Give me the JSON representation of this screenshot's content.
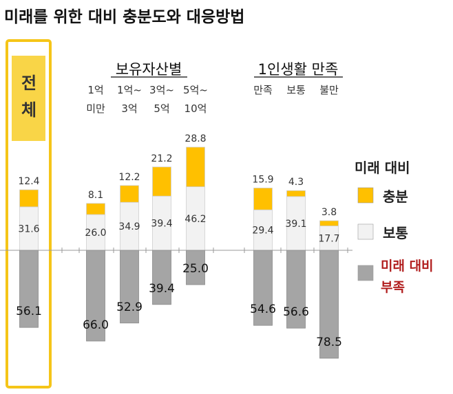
{
  "title": "미래를 위한 대비 충분도와 대응방법",
  "groups": {
    "assets": "보유자산별",
    "life": "1인생활 만족"
  },
  "total_label": [
    "전",
    "체"
  ],
  "legend": {
    "title": "미래 대비",
    "items": [
      {
        "label": "충분",
        "color": "#FFC000"
      },
      {
        "label": "보통",
        "color": "#F2F2F2"
      },
      {
        "label": [
          "미래 대비",
          "부족"
        ],
        "color": "#A5A5A5",
        "text_color": "#B11D1D"
      }
    ]
  },
  "chart_data": {
    "type": "bar",
    "stacked": "diverging",
    "categories": [
      [
        "전체"
      ],
      [
        "1억",
        "미만"
      ],
      [
        "1억~",
        "3억"
      ],
      [
        "3억~",
        "5억"
      ],
      [
        "5억~",
        "10억"
      ],
      [
        "만족"
      ],
      [
        "보통"
      ],
      [
        "불만"
      ]
    ],
    "series": [
      {
        "name": "충분",
        "color": "#FFC000",
        "values": [
          12.4,
          8.1,
          12.2,
          21.2,
          28.8,
          15.9,
          4.3,
          3.8
        ]
      },
      {
        "name": "보통",
        "color": "#F2F2F2",
        "values": [
          31.6,
          26.0,
          34.9,
          39.4,
          46.2,
          29.4,
          39.1,
          17.7
        ]
      },
      {
        "name": "미래 대비 부족",
        "color": "#A5A5A5",
        "values": [
          56.1,
          66.0,
          52.9,
          39.4,
          25.0,
          54.6,
          56.6,
          78.5
        ]
      }
    ],
    "value_labels": {
      "충분": [
        "12.4",
        "8.1",
        "12.2",
        "21.2",
        "28.8",
        "15.9",
        "4.3",
        "3.8"
      ],
      "보통": [
        "31.6",
        "26.0",
        "34.9",
        "39.4",
        "46.2",
        "29.4",
        "39.1",
        "17.7"
      ],
      "부족": [
        "56.1",
        "66.0",
        "52.9",
        "39.4",
        "25.0",
        "54.6",
        "56.6",
        "78.5"
      ]
    }
  }
}
